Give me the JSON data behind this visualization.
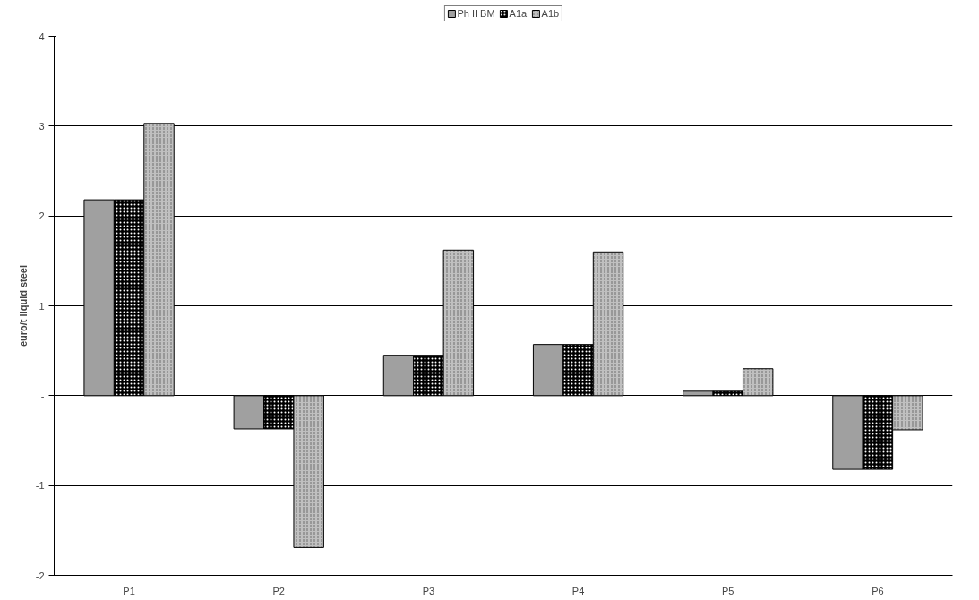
{
  "chart_data": {
    "type": "bar",
    "ylabel": "euro/t liquid steel",
    "categories": [
      "P1",
      "P2",
      "P3",
      "P4",
      "P5",
      "P6"
    ],
    "series": [
      {
        "name": "Ph II BM",
        "color": "#a0a0a0",
        "values": [
          2.18,
          -0.37,
          0.45,
          0.57,
          0.05,
          -0.82
        ]
      },
      {
        "name": "A1a",
        "color": "#000000",
        "values": [
          2.18,
          -0.37,
          0.45,
          0.57,
          0.05,
          -0.82
        ]
      },
      {
        "name": "A1b",
        "color": "#c0c0c0",
        "values": [
          3.03,
          -1.69,
          1.62,
          1.6,
          0.3,
          -0.38
        ]
      }
    ],
    "ylim": [
      -2,
      4
    ],
    "yticks": [
      -2,
      -1,
      {
        "value": 0,
        "label": "-"
      },
      1,
      2,
      3,
      4
    ],
    "grid": "y",
    "legend": "top"
  }
}
